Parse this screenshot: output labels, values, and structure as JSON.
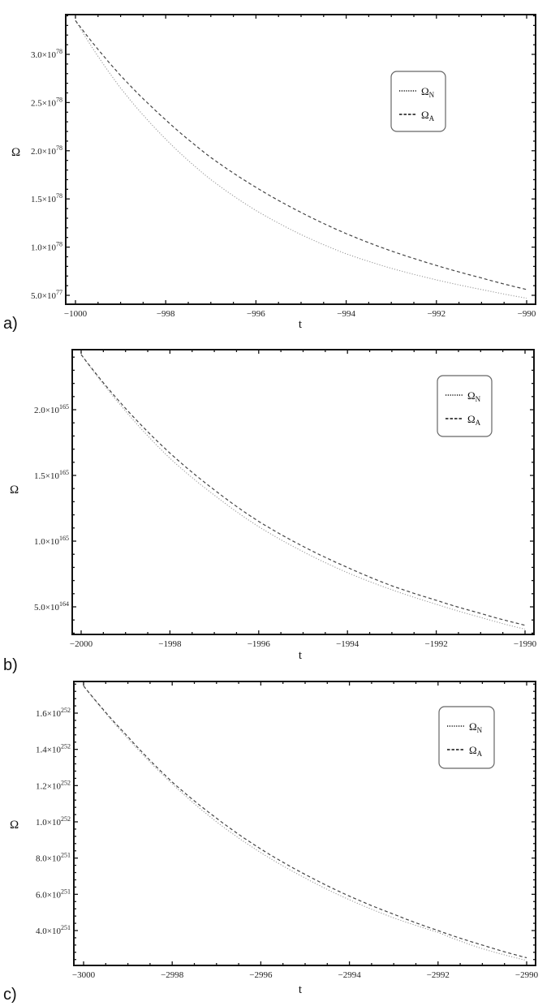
{
  "figure": {
    "colors": {
      "frame": "#111111",
      "series_N": "#9a9a9a",
      "series_A": "#444444",
      "legend_border": "#666666"
    }
  },
  "chart_data": [
    {
      "panel_label": "a)",
      "type": "line",
      "title": "",
      "xlabel": "t",
      "ylabel": "Ω",
      "xlim": [
        -1000,
        -990
      ],
      "ylim": [
        4.1e+77,
        3.5e+78
      ],
      "x_ticks": [
        -1000,
        -998,
        -996,
        -994,
        -992,
        -990
      ],
      "x_tick_labels": [
        "−1000",
        "−998",
        "−996",
        "−994",
        "−992",
        "−990"
      ],
      "y_ticks": [
        5e+77,
        1e+78,
        1.5e+78,
        2e+78,
        2.5e+78,
        3e+78
      ],
      "y_tick_labels": [
        {
          "mant": "5.0×10",
          "exp": "77"
        },
        {
          "mant": "1.0×10",
          "exp": "78"
        },
        {
          "mant": "1.5×10",
          "exp": "78"
        },
        {
          "mant": "2.0×10",
          "exp": "78"
        },
        {
          "mant": "2.5×10",
          "exp": "78"
        },
        {
          "mant": "3.0×10",
          "exp": "78"
        }
      ],
      "grid": false,
      "legend": {
        "position": "upper-right-inner",
        "entries": [
          {
            "name": "Ω",
            "sub": "N",
            "style": "dotted"
          },
          {
            "name": "Ω",
            "sub": "A",
            "style": "dashed"
          }
        ]
      },
      "x": [
        -1000,
        -999,
        -998,
        -997,
        -996,
        -995,
        -994,
        -993,
        -992,
        -991,
        -990
      ],
      "series": [
        {
          "name": "Ω_N",
          "style": "dotted",
          "values": [
            3.35e+78,
            2.65e+78,
            2.12e+78,
            1.7e+78,
            1.38e+78,
            1.13e+78,
            9.3e+77,
            7.8e+77,
            6.6e+77,
            5.6e+77,
            4.7e+77
          ]
        },
        {
          "name": "Ω_A",
          "style": "dashed",
          "values": [
            3.35e+78,
            2.78e+78,
            2.32e+78,
            1.93e+78,
            1.62e+78,
            1.36e+78,
            1.14e+78,
            9.6e+77,
            8.1e+77,
            6.8e+77,
            5.6e+77
          ]
        }
      ]
    },
    {
      "panel_label": "b)",
      "type": "line",
      "title": "",
      "xlabel": "t",
      "ylabel": "Ω",
      "xlim": [
        -2000,
        -1990
      ],
      "ylim": [
        2.6e+164,
        2.45e+165
      ],
      "x_ticks": [
        -2000,
        -1998,
        -1996,
        -1994,
        -1992,
        -1990
      ],
      "x_tick_labels": [
        "−2000",
        "−1998",
        "−1996",
        "−1994",
        "−1992",
        "−1990"
      ],
      "y_ticks": [
        5e+164,
        1e+165,
        1.5e+165,
        2e+165
      ],
      "y_tick_labels": [
        {
          "mant": "5.0×10",
          "exp": "164"
        },
        {
          "mant": "1.0×10",
          "exp": "165"
        },
        {
          "mant": "1.5×10",
          "exp": "165"
        },
        {
          "mant": "2.0×10",
          "exp": "165"
        }
      ],
      "grid": false,
      "legend": {
        "position": "upper-right-inner",
        "entries": [
          {
            "name": "Ω",
            "sub": "N",
            "style": "dotted"
          },
          {
            "name": "Ω",
            "sub": "A",
            "style": "dashed"
          }
        ]
      },
      "x": [
        -2000,
        -1999,
        -1998,
        -1997,
        -1996,
        -1995,
        -1994,
        -1993,
        -1992,
        -1991,
        -1990
      ],
      "series": [
        {
          "name": "Ω_N",
          "style": "dotted",
          "values": [
            2.42e+165,
            1.99e+165,
            1.63e+165,
            1.35e+165,
            1.11e+165,
            9.2e+164,
            7.6e+164,
            6.3e+164,
            5.2e+164,
            4.2e+164,
            3.3e+164
          ]
        },
        {
          "name": "Ω_A",
          "style": "dashed",
          "values": [
            2.42e+165,
            2.01e+165,
            1.67e+165,
            1.39e+165,
            1.15e+165,
            9.6e+164,
            8e+164,
            6.6e+164,
            5.5e+164,
            4.5e+164,
            3.6e+164
          ]
        }
      ]
    },
    {
      "panel_label": "c)",
      "type": "line",
      "title": "",
      "xlabel": "t",
      "ylabel": "Ω",
      "xlim": [
        -3000,
        -2990
      ],
      "ylim": [
        2.1e+251,
        1.78e+252
      ],
      "x_ticks": [
        -3000,
        -2998,
        -2996,
        -2994,
        -2992,
        -2990
      ],
      "x_tick_labels": [
        "−3000",
        "−2998",
        "−2996",
        "−2994",
        "−2992",
        "−2990"
      ],
      "y_ticks": [
        4e+251,
        6e+251,
        8e+251,
        1e+252,
        1.2e+252,
        1.4e+252,
        1.6e+252
      ],
      "y_tick_labels": [
        {
          "mant": "4.0×10",
          "exp": "251"
        },
        {
          "mant": "6.0×10",
          "exp": "251"
        },
        {
          "mant": "8.0×10",
          "exp": "251"
        },
        {
          "mant": "1.0×10",
          "exp": "252"
        },
        {
          "mant": "1.2×10",
          "exp": "252"
        },
        {
          "mant": "1.4×10",
          "exp": "252"
        },
        {
          "mant": "1.6×10",
          "exp": "252"
        }
      ],
      "grid": false,
      "legend": {
        "position": "upper-right-inner",
        "entries": [
          {
            "name": "Ω",
            "sub": "N",
            "style": "dotted"
          },
          {
            "name": "Ω",
            "sub": "A",
            "style": "dashed"
          }
        ]
      },
      "x": [
        -3000,
        -2999,
        -2998,
        -2997,
        -2996,
        -2995,
        -2994,
        -2993,
        -2992,
        -2991,
        -2990
      ],
      "series": [
        {
          "name": "Ω_N",
          "style": "dotted",
          "values": [
            1.75e+252,
            1.46e+252,
            1.21e+252,
            1e+252,
            8.3e+251,
            6.9e+251,
            5.7e+251,
            4.7e+251,
            3.9e+251,
            3e+251,
            2.35e+251
          ]
        },
        {
          "name": "Ω_A",
          "style": "dashed",
          "values": [
            1.75e+252,
            1.47e+252,
            1.22e+252,
            1.02e+252,
            8.5e+251,
            7.1e+251,
            5.9e+251,
            4.9e+251,
            4e+251,
            3.2e+251,
            2.5e+251
          ]
        }
      ]
    }
  ]
}
